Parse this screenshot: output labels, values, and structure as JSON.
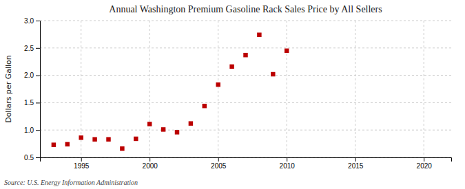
{
  "chart_data": {
    "type": "scatter",
    "title": "Annual Washington Premium Gasoline Rack Sales Price by All Sellers",
    "ylabel": "Dollars per Gallon",
    "source": "Source: U.S. Energy Information Administration",
    "x": [
      1993,
      1994,
      1995,
      1996,
      1997,
      1998,
      1999,
      2000,
      2001,
      2002,
      2003,
      2004,
      2005,
      2006,
      2007,
      2008,
      2009,
      2010
    ],
    "values": [
      0.73,
      0.74,
      0.86,
      0.83,
      0.83,
      0.66,
      0.84,
      1.11,
      1.01,
      0.96,
      1.12,
      1.44,
      1.83,
      2.16,
      2.37,
      2.74,
      2.02,
      2.45
    ],
    "color": "#bb0000",
    "marker": "square",
    "xlim": [
      1992,
      2022
    ],
    "ylim": [
      0.5,
      3.0
    ],
    "xticks": [
      1995,
      2000,
      2005,
      2010,
      2015,
      2020
    ],
    "yticks": [
      0.5,
      {
        "value": 1.0,
        "label": "1.0"
      },
      1.5,
      {
        "value": 2.0,
        "label": "2.0"
      },
      2.5,
      {
        "value": 3.0,
        "label": "3.0"
      }
    ],
    "grid": true
  }
}
